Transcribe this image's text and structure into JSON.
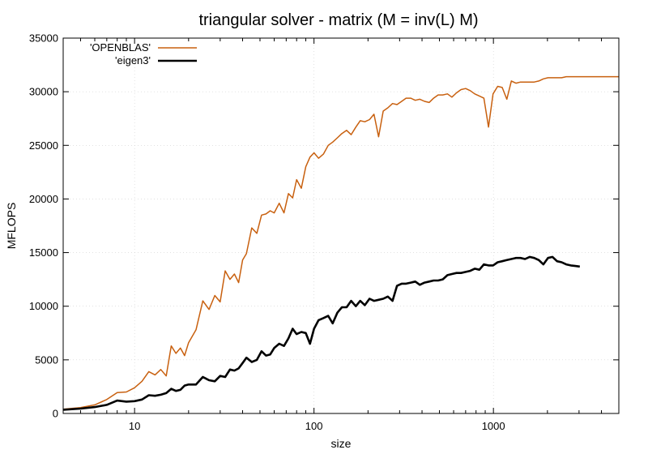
{
  "chart_data": {
    "type": "line",
    "title": "triangular solver - matrix (M = inv(L) M)",
    "xlabel": "size",
    "ylabel": "MFLOPS",
    "xscale": "log",
    "xlim": [
      4,
      5000
    ],
    "ylim": [
      0,
      35000
    ],
    "xticks": [
      10,
      100,
      1000
    ],
    "yticks": [
      0,
      5000,
      10000,
      15000,
      20000,
      25000,
      30000,
      35000
    ],
    "grid": true,
    "legend_position": "top-left",
    "series": [
      {
        "name": "'OPENBLAS'",
        "color": "#c8600f",
        "x": [
          4,
          5,
          6,
          7,
          8,
          9,
          10,
          11,
          12,
          13,
          14,
          15,
          16,
          17,
          18,
          19,
          20,
          22,
          24,
          26,
          28,
          30,
          32,
          34,
          36,
          38,
          40,
          42,
          45,
          48,
          51,
          54,
          57,
          60,
          64,
          68,
          72,
          76,
          80,
          85,
          90,
          95,
          100,
          106,
          113,
          120,
          127,
          135,
          143,
          152,
          161,
          171,
          181,
          192,
          204,
          216,
          229,
          243,
          258,
          274,
          290,
          308,
          326,
          346,
          367,
          389,
          413,
          438,
          464,
          492,
          522,
          554,
          587,
          623,
          660,
          700,
          742,
          787,
          835,
          885,
          939,
          995,
          1056,
          1119,
          1187,
          1259,
          1335,
          1415,
          1501,
          1592,
          1688,
          1790,
          1898,
          2013,
          2134,
          2263,
          2400,
          2545,
          2700,
          2860,
          3030,
          3210,
          3400,
          3610,
          3830,
          4060,
          4300,
          4560,
          4840,
          5000
        ],
        "y": [
          400,
          550,
          800,
          1300,
          1950,
          2000,
          2400,
          3000,
          3900,
          3600,
          4100,
          3500,
          6300,
          5600,
          6100,
          5400,
          6600,
          7800,
          10500,
          9700,
          11000,
          10400,
          13300,
          12500,
          13000,
          12200,
          14300,
          14900,
          17300,
          16800,
          18500,
          18600,
          18900,
          18700,
          19600,
          18700,
          20500,
          20100,
          21800,
          21000,
          23000,
          23900,
          24300,
          23800,
          24200,
          25000,
          25300,
          25700,
          26100,
          26400,
          26000,
          26700,
          27300,
          27200,
          27400,
          27900,
          25800,
          28200,
          28500,
          28900,
          28800,
          29100,
          29400,
          29400,
          29200,
          29300,
          29100,
          29000,
          29400,
          29700,
          29700,
          29800,
          29500,
          29900,
          30200,
          30300,
          30100,
          29800,
          29600,
          29400,
          26700,
          29800,
          30500,
          30400,
          29300,
          31000,
          30800,
          30900,
          30900,
          30900,
          30900,
          31000,
          31200,
          31300,
          31300,
          31300,
          31300,
          31400,
          31400,
          31400,
          31400,
          31400,
          31400,
          31400,
          31400,
          31400,
          31400,
          31400,
          31400,
          31400
        ]
      },
      {
        "name": "'eigen3'",
        "color": "#000000",
        "x": [
          4,
          5,
          6,
          7,
          8,
          9,
          10,
          11,
          12,
          13,
          14,
          15,
          16,
          17,
          18,
          19,
          20,
          22,
          24,
          26,
          28,
          30,
          32,
          34,
          36,
          38,
          40,
          42,
          45,
          48,
          51,
          54,
          57,
          60,
          64,
          68,
          72,
          76,
          80,
          85,
          90,
          95,
          100,
          106,
          113,
          120,
          127,
          135,
          143,
          152,
          161,
          171,
          181,
          192,
          204,
          216,
          229,
          243,
          258,
          274,
          290,
          308,
          326,
          346,
          367,
          389,
          413,
          438,
          464,
          492,
          522,
          554,
          587,
          623,
          660,
          700,
          742,
          787,
          835,
          885,
          939,
          995,
          1056,
          1119,
          1187,
          1259,
          1335,
          1415,
          1501,
          1592,
          1688,
          1790,
          1898,
          2013,
          2134,
          2263,
          2400,
          2545,
          2700,
          2860,
          3030
        ],
        "y": [
          350,
          450,
          600,
          800,
          1200,
          1100,
          1150,
          1300,
          1700,
          1650,
          1750,
          1900,
          2300,
          2100,
          2200,
          2600,
          2700,
          2700,
          3400,
          3100,
          3000,
          3500,
          3400,
          4100,
          4000,
          4200,
          4700,
          5200,
          4800,
          5000,
          5800,
          5400,
          5500,
          6100,
          6500,
          6300,
          7000,
          7900,
          7400,
          7600,
          7500,
          6500,
          7900,
          8700,
          8900,
          9100,
          8400,
          9400,
          9900,
          9900,
          10500,
          10000,
          10500,
          10100,
          10700,
          10500,
          10600,
          10700,
          10900,
          10500,
          11900,
          12100,
          12100,
          12200,
          12300,
          12000,
          12200,
          12300,
          12400,
          12400,
          12500,
          12900,
          13000,
          13100,
          13100,
          13200,
          13300,
          13500,
          13400,
          13900,
          13800,
          13800,
          14100,
          14200,
          14300,
          14400,
          14500,
          14500,
          14400,
          14600,
          14500,
          14300,
          13900,
          14500,
          14600,
          14200,
          14100,
          13900,
          13800,
          13750,
          13700
        ]
      }
    ]
  }
}
